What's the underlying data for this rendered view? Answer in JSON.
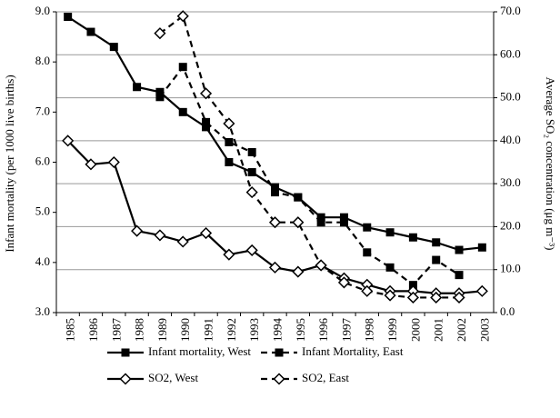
{
  "chart_data": {
    "type": "line",
    "y_label": "Infant mortality (per 1000 live births)",
    "y2_label": "Average SO₂ concentration (μg m⁻³)",
    "categories": [
      "1985",
      "1986",
      "1987",
      "1988",
      "1989",
      "1990",
      "1991",
      "1992",
      "1993",
      "1994",
      "1995",
      "1996",
      "1997",
      "1998",
      "1999",
      "2000",
      "2001",
      "2002",
      "2003"
    ],
    "series": [
      {
        "name": "Infant mortality, West",
        "color": "#000000",
        "dash": false,
        "marker": "square",
        "values": [
          8.9,
          8.6,
          8.3,
          7.5,
          7.4,
          7.0,
          6.7,
          6.0,
          5.8,
          5.5,
          5.3,
          4.9,
          4.9,
          4.7,
          4.6,
          4.5,
          4.4,
          4.25,
          4.3
        ]
      },
      {
        "name": "Infant Mortality, East",
        "color": "#000000",
        "dash": true,
        "marker": "square",
        "values": [
          null,
          null,
          null,
          null,
          7.3,
          7.9,
          6.8,
          6.4,
          6.2,
          5.4,
          5.3,
          4.8,
          4.8,
          4.2,
          3.9,
          3.55,
          4.05,
          3.75,
          null
        ]
      },
      {
        "name": "SO2, West",
        "color": "#000000",
        "dash": false,
        "marker": "diamond",
        "axis": "y2",
        "values": [
          40,
          34.5,
          35,
          19,
          18,
          16.5,
          18.5,
          13.5,
          14.5,
          10.5,
          9.5,
          11,
          8,
          6.5,
          5,
          5,
          4.5,
          4.5,
          5
        ]
      },
      {
        "name": "SO2, East",
        "color": "#000000",
        "dash": true,
        "marker": "diamond",
        "axis": "y2",
        "values": [
          null,
          null,
          null,
          null,
          65,
          69,
          51,
          44,
          28,
          21,
          21,
          11,
          7,
          5,
          4,
          3.5,
          3.5,
          3.5,
          null
        ]
      }
    ],
    "ylim": [
      3.0,
      9.0
    ],
    "yticks": [
      {
        "value": 3,
        "label": "3.0"
      },
      {
        "value": 4,
        "label": "4.0"
      },
      {
        "value": 5,
        "label": "5.0"
      },
      {
        "value": 6,
        "label": "6.0"
      },
      {
        "value": 7,
        "label": "7.0"
      },
      {
        "value": 8,
        "label": "8.0"
      },
      {
        "value": 9,
        "label": "9.0"
      }
    ],
    "y2lim": [
      0,
      70
    ],
    "y2ticks": [
      {
        "value": 0,
        "label": "0.0"
      },
      {
        "value": 10,
        "label": "10.0"
      },
      {
        "value": 20,
        "label": "20.0"
      },
      {
        "value": 30,
        "label": "30.0"
      },
      {
        "value": 40,
        "label": "40.0"
      },
      {
        "value": 50,
        "label": "50.0"
      },
      {
        "value": 60,
        "label": "60.0"
      },
      {
        "value": 70,
        "label": "70.0"
      }
    ],
    "grid": "y2"
  }
}
